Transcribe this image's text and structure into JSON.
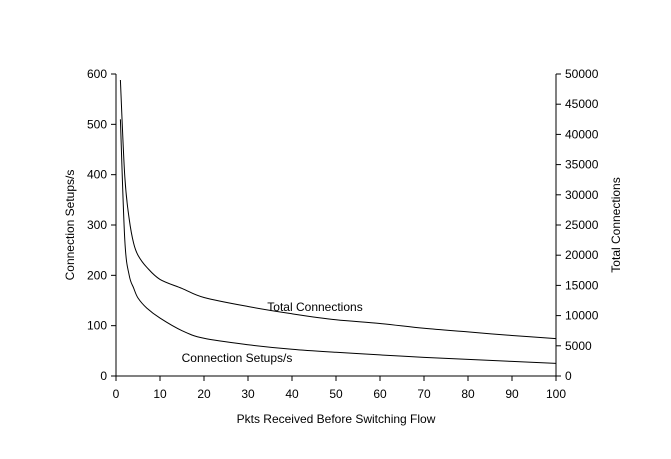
{
  "chart_data": {
    "type": "line",
    "title": "",
    "xlabel": "Pkts Received Before Switching Flow",
    "ylabel": "Connection Setups/s",
    "y2label": "Total Connections",
    "xlim": [
      0,
      100
    ],
    "ylim": [
      0,
      600
    ],
    "y2lim": [
      0,
      50000
    ],
    "x_ticks": [
      "0",
      "10",
      "20",
      "30",
      "40",
      "50",
      "60",
      "70",
      "80",
      "90",
      "100"
    ],
    "y_ticks": [
      "0",
      "100",
      "200",
      "300",
      "400",
      "500",
      "600"
    ],
    "y2_ticks": [
      "0",
      "5000",
      "10000",
      "15000",
      "20000",
      "25000",
      "30000",
      "35000",
      "40000",
      "45000",
      "50000"
    ],
    "grid": false,
    "series": [
      {
        "name": "Total Connections",
        "axis": "right",
        "x": [
          1,
          2,
          3,
          4,
          5,
          7,
          10,
          15,
          20,
          30,
          40,
          50,
          60,
          70,
          80,
          90,
          100
        ],
        "y": [
          49000,
          33000,
          26000,
          22000,
          20000,
          18000,
          16000,
          14500,
          13000,
          11500,
          10300,
          9300,
          8700,
          7900,
          7300,
          6700,
          6200
        ]
      },
      {
        "name": "Connection Setups/s",
        "axis": "left",
        "x": [
          1,
          2,
          3,
          4,
          5,
          7,
          10,
          15,
          20,
          30,
          40,
          50,
          60,
          70,
          80,
          90,
          100
        ],
        "y": [
          510,
          270,
          200,
          175,
          155,
          135,
          115,
          90,
          75,
          62,
          53,
          47,
          42,
          37,
          33,
          29,
          25
        ]
      }
    ]
  }
}
